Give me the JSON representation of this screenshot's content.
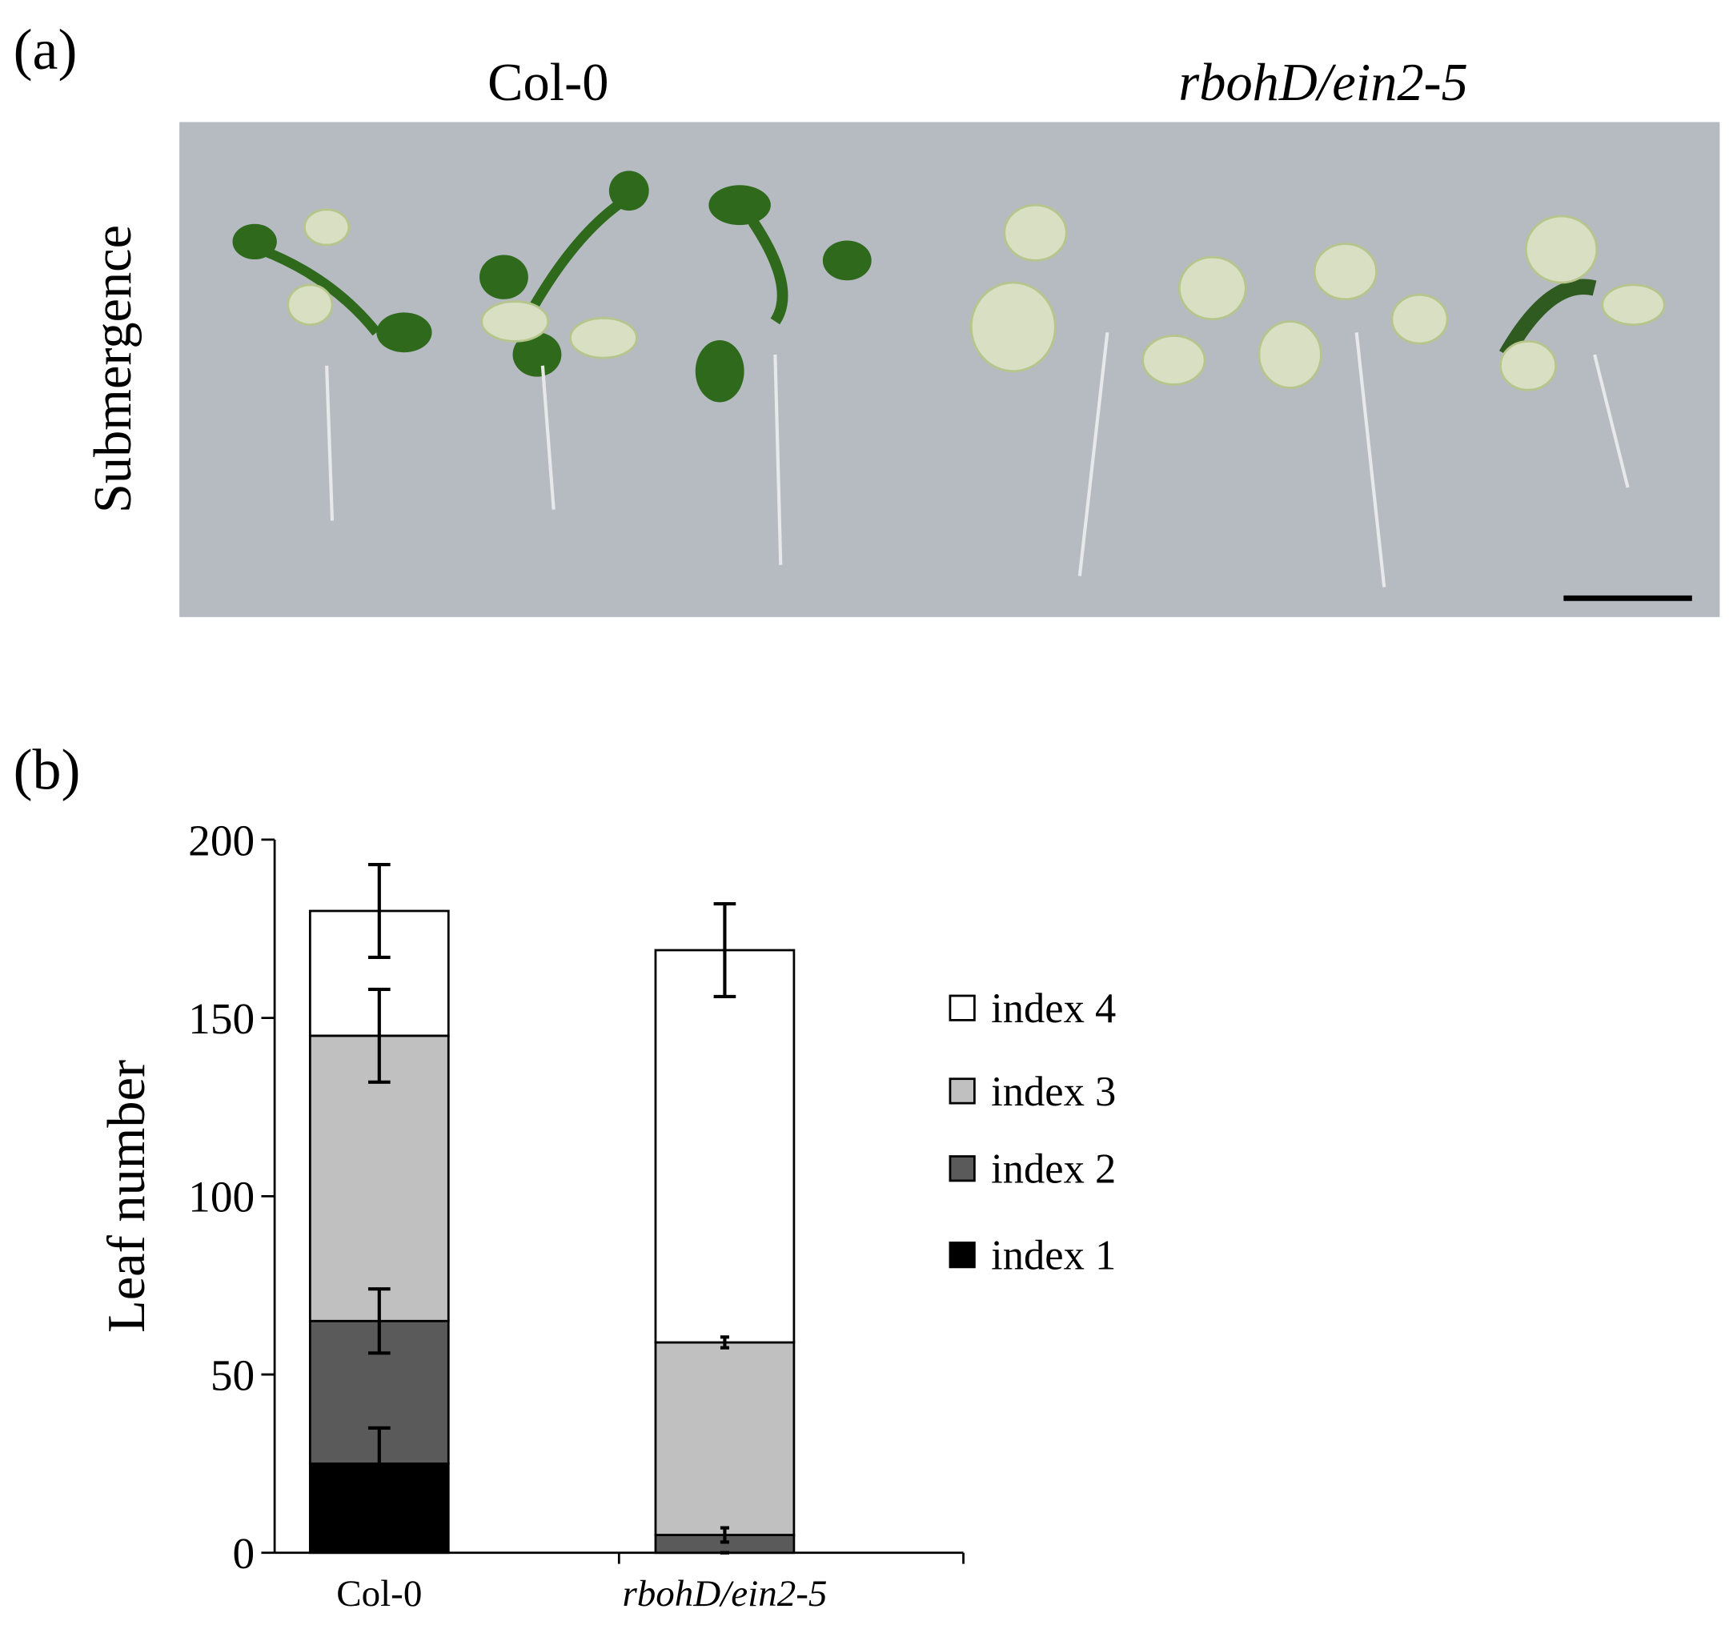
{
  "figure": {
    "panel_a": {
      "label": "(a)",
      "columns": [
        "Col-0",
        "rbohD/ein2-5"
      ],
      "row_label": "Submergence"
    },
    "panel_b_label": "(b)"
  },
  "chart_data": {
    "type": "stacked_bar",
    "ylabel": "Leaf number",
    "categories": [
      "Col-0",
      "rbohD/ein2-5"
    ],
    "series": [
      {
        "name": "index 1",
        "color": "#000000",
        "values": [
          25,
          0
        ],
        "errors": [
          10,
          0
        ]
      },
      {
        "name": "index 2",
        "color": "#5a5a5a",
        "values": [
          40,
          5
        ],
        "errors": [
          9,
          2
        ]
      },
      {
        "name": "index 3",
        "color": "#c0c0c0",
        "values": [
          80,
          54
        ],
        "errors": [
          13,
          1.5
        ]
      },
      {
        "name": "index 4",
        "color": "#ffffff",
        "values": [
          35,
          110
        ],
        "errors": [
          13,
          13
        ]
      }
    ],
    "ylim": [
      0,
      200
    ],
    "yticks": [
      0,
      50,
      100,
      150,
      200
    ],
    "legend": "right"
  }
}
